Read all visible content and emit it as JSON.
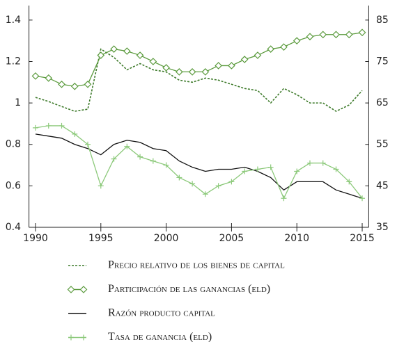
{
  "chart_data": {
    "type": "line",
    "x": [
      1990,
      1991,
      1992,
      1993,
      1994,
      1995,
      1996,
      1997,
      1998,
      1999,
      2000,
      2001,
      2002,
      2003,
      2004,
      2005,
      2006,
      2007,
      2008,
      2009,
      2010,
      2011,
      2012,
      2013,
      2014,
      2015
    ],
    "xlim": [
      1989.5,
      2015.5
    ],
    "xticks": [
      1990,
      1995,
      2000,
      2005,
      2010,
      2015
    ],
    "ylim": [
      0.4,
      1.47
    ],
    "yticks": [
      0.4,
      0.6,
      0.8,
      1.0,
      1.2,
      1.4
    ],
    "y2lim": [
      35,
      88.5
    ],
    "y2ticks": [
      35,
      45,
      55,
      65,
      75,
      85
    ],
    "series": [
      {
        "name": "Precio relativo de los bienes de capital",
        "color": "#3d7a2a",
        "dash": true,
        "values": [
          1.027,
          1.007,
          0.983,
          0.96,
          0.97,
          1.26,
          1.22,
          1.16,
          1.19,
          1.16,
          1.15,
          1.11,
          1.1,
          1.12,
          1.11,
          1.09,
          1.07,
          1.06,
          1.0,
          1.07,
          1.04,
          1.0,
          1.0,
          0.96,
          0.99,
          1.06
        ]
      },
      {
        "name": "Participación de las ganancias (eld)",
        "color": "#5a9a3c",
        "marker": "diamond",
        "axis": "y2",
        "values": [
          71.5,
          71,
          69.5,
          69,
          69.5,
          76.5,
          78,
          77.5,
          76.5,
          75,
          73.5,
          72.5,
          72.5,
          72.5,
          74,
          74,
          75.5,
          76.5,
          78,
          78.5,
          80,
          81,
          81.5,
          81.5,
          81.5,
          82
        ]
      },
      {
        "name": "Razón producto capital",
        "color": "#111111",
        "values": [
          0.85,
          0.84,
          0.83,
          0.8,
          0.78,
          0.75,
          0.8,
          0.82,
          0.81,
          0.78,
          0.77,
          0.72,
          0.69,
          0.67,
          0.68,
          0.68,
          0.69,
          0.67,
          0.64,
          0.58,
          0.62,
          0.62,
          0.62,
          0.58,
          0.56,
          0.54
        ]
      },
      {
        "name": "Tasa de ganancia (eld)",
        "color": "#8cc97a",
        "marker": "plus",
        "values": [
          0.88,
          0.89,
          0.89,
          0.85,
          0.8,
          0.6,
          0.73,
          0.79,
          0.74,
          0.72,
          0.7,
          0.64,
          0.61,
          0.56,
          0.6,
          0.62,
          0.67,
          0.68,
          0.69,
          0.54,
          0.67,
          0.71,
          0.71,
          0.68,
          0.62,
          0.54
        ]
      }
    ]
  }
}
